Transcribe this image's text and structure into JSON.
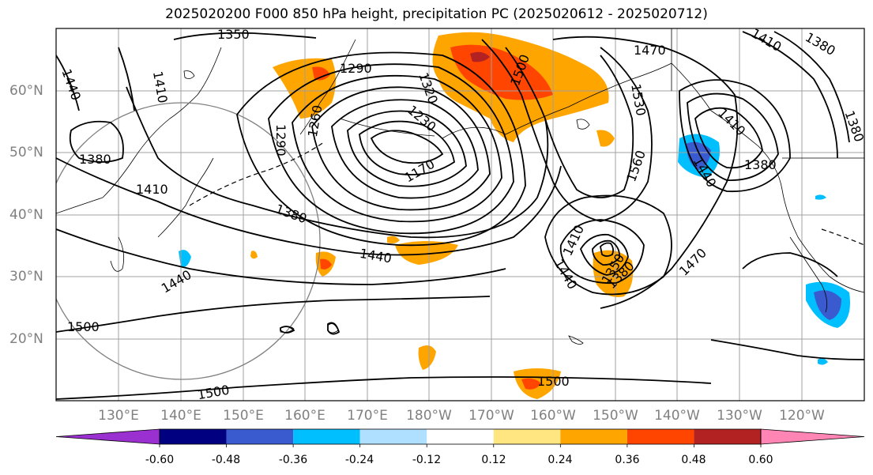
{
  "title": "2025020200 F000 850 hPa height, precipitation PC (2025020612 - 2025020712)",
  "lat_ticks": [
    "60°N",
    "50°N",
    "40°N",
    "30°N",
    "20°N"
  ],
  "lon_ticks": [
    "130°E",
    "140°E",
    "150°E",
    "160°E",
    "170°E",
    "180°W",
    "170°W",
    "160°W",
    "150°W",
    "140°W",
    "130°W",
    "120°W"
  ],
  "contour_labels": [
    "1350",
    "1290",
    "1320",
    "1500",
    "1470",
    "1410",
    "1380",
    "1440",
    "1410",
    "1380",
    "1260",
    "1290",
    "1230",
    "1170",
    "1530",
    "1560",
    "1380",
    "1410",
    "1380",
    "1440",
    "1440",
    "1410",
    "1350",
    "1380",
    "1440",
    "1470",
    "1440",
    "1500",
    "1500",
    "1500",
    "1410",
    "1380"
  ],
  "colorbar": {
    "tick_labels": [
      "-0.60",
      "-0.48",
      "-0.36",
      "-0.24",
      "-0.12",
      "0.12",
      "0.24",
      "0.36",
      "0.48",
      "0.60"
    ],
    "colors": [
      "#9b30d0",
      "#000080",
      "#3a5bcf",
      "#00bfff",
      "#b0e0ff",
      "#ffffff",
      "#ffe680",
      "#ffa500",
      "#ff4500",
      "#b22222",
      "#ff85b5"
    ]
  },
  "colors": {
    "contour": "#000000",
    "grid": "#a0a0a0",
    "circle": "#808080"
  }
}
